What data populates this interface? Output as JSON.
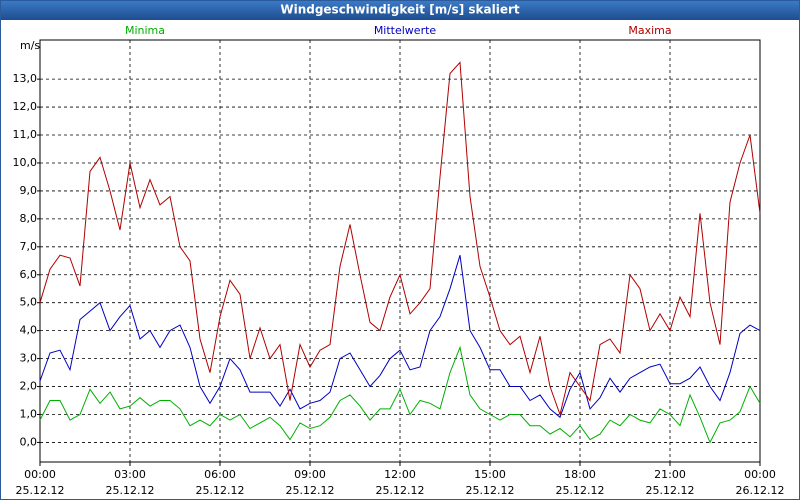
{
  "chart_data": {
    "type": "line",
    "title": "Windgeschwindigkeit [m/s] skaliert",
    "y_label": "m/s",
    "x": [
      0,
      20,
      40,
      60,
      80,
      100,
      120,
      140,
      160,
      180,
      200,
      220,
      240,
      260,
      280,
      300,
      320,
      340,
      360,
      380,
      400,
      420,
      440,
      460,
      480,
      500,
      520,
      540,
      560,
      580,
      600,
      620,
      640,
      660,
      680,
      700,
      720,
      740,
      760,
      780,
      800,
      820,
      840,
      860,
      880,
      900,
      920,
      940,
      960,
      980,
      1000,
      1020,
      1040,
      1060,
      1080,
      1100,
      1120,
      1140,
      1160,
      1180,
      1200,
      1220,
      1240,
      1260,
      1280,
      1300,
      1320,
      1340,
      1360,
      1380,
      1400,
      1420,
      1440
    ],
    "series": [
      {
        "name": "Minima",
        "color": "#00b000",
        "values": [
          0.8,
          1.5,
          1.5,
          0.8,
          1.0,
          1.9,
          1.4,
          1.8,
          1.2,
          1.3,
          1.6,
          1.3,
          1.5,
          1.5,
          1.2,
          0.6,
          0.8,
          0.6,
          1.0,
          0.8,
          1.0,
          0.5,
          0.7,
          0.9,
          0.6,
          0.1,
          0.7,
          0.5,
          0.6,
          0.9,
          1.5,
          1.7,
          1.3,
          0.8,
          1.2,
          1.2,
          1.9,
          1.0,
          1.5,
          1.4,
          1.2,
          2.5,
          3.4,
          1.7,
          1.2,
          1.0,
          0.8,
          1.0,
          1.0,
          0.6,
          0.6,
          0.3,
          0.5,
          0.2,
          0.6,
          0.1,
          0.3,
          0.8,
          0.6,
          1.0,
          0.8,
          0.7,
          1.2,
          1.0,
          0.6,
          1.7,
          0.9,
          0.0,
          0.7,
          0.8,
          1.1,
          2.0,
          1.4
        ]
      },
      {
        "name": "Mittelwerte",
        "color": "#0000c0",
        "values": [
          2.2,
          3.2,
          3.3,
          2.6,
          4.4,
          4.7,
          5.0,
          4.0,
          4.5,
          4.9,
          3.7,
          4.0,
          3.4,
          4.0,
          4.2,
          3.4,
          2.0,
          1.4,
          2.0,
          3.0,
          2.6,
          1.8,
          1.8,
          1.8,
          1.3,
          1.9,
          1.2,
          1.4,
          1.5,
          1.8,
          3.0,
          3.2,
          2.6,
          2.0,
          2.4,
          3.0,
          3.3,
          2.6,
          2.7,
          4.0,
          4.5,
          5.5,
          6.7,
          4.0,
          3.4,
          2.6,
          2.6,
          2.0,
          2.0,
          1.5,
          1.7,
          1.2,
          0.9,
          1.9,
          2.5,
          1.2,
          1.6,
          2.3,
          1.8,
          2.3,
          2.5,
          2.7,
          2.8,
          2.1,
          2.1,
          2.3,
          2.7,
          2.0,
          1.5,
          2.5,
          3.9,
          4.2,
          4.0
        ]
      },
      {
        "name": "Maxima",
        "color": "#b00000",
        "values": [
          5.0,
          6.2,
          6.7,
          6.6,
          5.6,
          9.7,
          10.2,
          9.0,
          7.6,
          10.0,
          8.4,
          9.4,
          8.5,
          8.8,
          7.0,
          6.5,
          3.7,
          2.5,
          4.5,
          5.8,
          5.3,
          3.0,
          4.1,
          3.0,
          3.5,
          1.5,
          3.5,
          2.7,
          3.3,
          3.5,
          6.3,
          7.8,
          6.0,
          4.3,
          4.0,
          5.2,
          6.0,
          4.6,
          5.0,
          5.5,
          9.5,
          13.2,
          13.6,
          8.8,
          6.3,
          5.2,
          4.0,
          3.5,
          3.8,
          2.5,
          3.8,
          2.0,
          1.0,
          2.5,
          2.0,
          1.5,
          3.5,
          3.7,
          3.2,
          6.0,
          5.5,
          4.0,
          4.6,
          4.0,
          5.2,
          4.5,
          8.2,
          5.0,
          3.5,
          8.6,
          10.0,
          11.0,
          8.2
        ]
      }
    ],
    "xlim": [
      0,
      1440
    ],
    "xticks": [
      {
        "value": 0,
        "label": "00:00"
      },
      {
        "value": 180,
        "label": "03:00"
      },
      {
        "value": 360,
        "label": "06:00"
      },
      {
        "value": 540,
        "label": "09:00"
      },
      {
        "value": 720,
        "label": "12:00"
      },
      {
        "value": 900,
        "label": "15:00"
      },
      {
        "value": 1080,
        "label": "18:00"
      },
      {
        "value": 1260,
        "label": "21:00"
      },
      {
        "value": 1440,
        "label": "00:00"
      }
    ],
    "xtick_dates": [
      "25.12.12",
      "25.12.12",
      "25.12.12",
      "25.12.12",
      "25.12.12",
      "25.12.12",
      "25.12.12",
      "25.12.12",
      "26.12.12"
    ],
    "ylim": [
      -0.7,
      14.4
    ],
    "yticks": [
      {
        "value": 0,
        "label": "0,0"
      },
      {
        "value": 1,
        "label": "1,0"
      },
      {
        "value": 2,
        "label": "2,0"
      },
      {
        "value": 3,
        "label": "3,0"
      },
      {
        "value": 4,
        "label": "4,0"
      },
      {
        "value": 5,
        "label": "5,0"
      },
      {
        "value": 6,
        "label": "6,0"
      },
      {
        "value": 7,
        "label": "7,0"
      },
      {
        "value": 8,
        "label": "8,0"
      },
      {
        "value": 9,
        "label": "9,0"
      },
      {
        "value": 10,
        "label": "10,0"
      },
      {
        "value": 11,
        "label": "11,0"
      },
      {
        "value": 12,
        "label": "12,0"
      },
      {
        "value": 13,
        "label": "13,0"
      }
    ],
    "grid": true
  }
}
